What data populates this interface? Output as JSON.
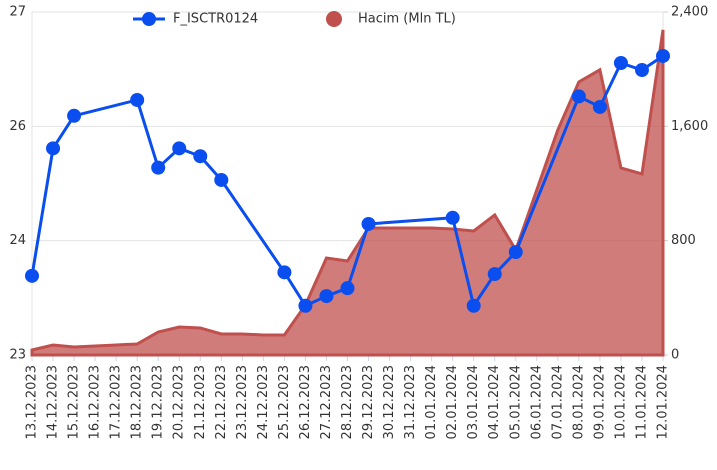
{
  "chart_data": {
    "type": "line-area",
    "categories": [
      "13.12.2023",
      "14.12.2023",
      "15.12.2023",
      "16.12.2023",
      "17.12.2023",
      "18.12.2023",
      "19.12.2023",
      "20.12.2023",
      "21.12.2023",
      "22.12.2023",
      "23.12.2023",
      "24.12.2023",
      "25.12.2023",
      "26.12.2023",
      "27.12.2023",
      "28.12.2023",
      "29.12.2023",
      "30.12.2023",
      "31.12.2023",
      "01.01.2024",
      "02.01.2024",
      "03.01.2024",
      "04.01.2024",
      "05.01.2024",
      "06.01.2024",
      "07.01.2024",
      "08.01.2024",
      "09.01.2024",
      "10.01.2024",
      "11.01.2024",
      "12.01.2024"
    ],
    "series": [
      {
        "name": "F_ISCTR0124",
        "type": "line",
        "color": "#0a4ef0",
        "values": [
          23.9,
          25.35,
          25.72,
          null,
          null,
          25.9,
          25.13,
          25.35,
          25.26,
          24.99,
          null,
          null,
          23.94,
          23.56,
          23.67,
          23.76,
          24.49,
          null,
          null,
          null,
          24.56,
          23.56,
          23.92,
          24.17,
          null,
          null,
          25.94,
          25.82,
          26.32,
          26.24,
          26.4
        ]
      },
      {
        "name": "Hacim (Mln TL)",
        "type": "area",
        "axis": "y2",
        "color": "#c0504d",
        "values": [
          35,
          70,
          56,
          63,
          70,
          77,
          161,
          196,
          189,
          147,
          147,
          140,
          140,
          350,
          679,
          658,
          889,
          889,
          889,
          889,
          882,
          868,
          980,
          735,
          1155,
          1575,
          1911,
          1995,
          1309,
          1267,
          2275
        ]
      }
    ],
    "connect_nulls": true,
    "ylim": [
      23,
      26.9
    ],
    "yticks": [
      {
        "value": 23,
        "label": "23"
      },
      {
        "value": 24.3,
        "label": "24"
      },
      {
        "value": 25.6,
        "label": "26"
      },
      {
        "value": 26.9,
        "label": "27"
      }
    ],
    "y2lim": [
      0,
      2400
    ],
    "y2ticks": [
      0,
      800,
      {
        "value": 1600,
        "label": "1,600"
      },
      {
        "value": 2400,
        "label": "2,400"
      }
    ],
    "grid": true,
    "legend": "top"
  }
}
